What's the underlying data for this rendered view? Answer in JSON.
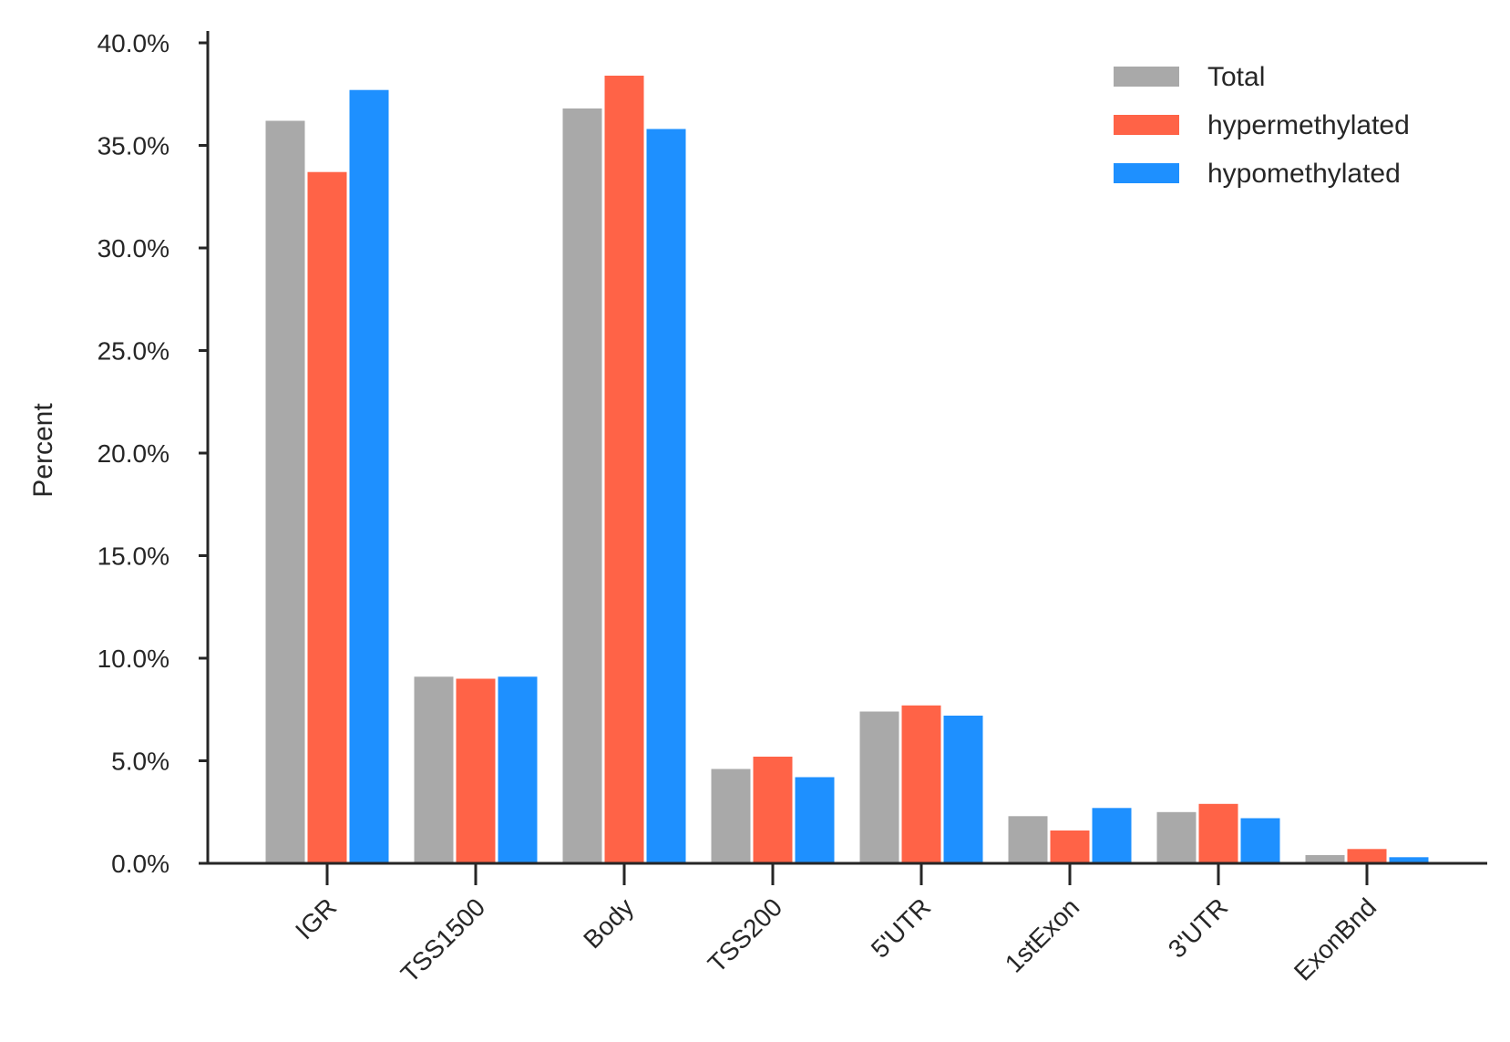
{
  "chart_data": {
    "type": "bar",
    "title": "",
    "xlabel": "",
    "ylabel": "Percent",
    "ylim": [
      0,
      40
    ],
    "y_ticks": [
      0,
      5,
      10,
      15,
      20,
      25,
      30,
      35,
      40
    ],
    "y_tick_format": "percent_1dp",
    "categories": [
      "IGR",
      "TSS1500",
      "Body",
      "TSS200",
      "5'UTR",
      "1stExon",
      "3'UTR",
      "ExonBnd"
    ],
    "series": [
      {
        "name": "Total",
        "color": "#a9a9a9",
        "values": [
          36.2,
          9.1,
          36.8,
          4.6,
          7.4,
          2.3,
          2.5,
          0.4
        ]
      },
      {
        "name": "hypermethylated",
        "color": "#ff6347",
        "values": [
          33.7,
          9.0,
          38.4,
          5.2,
          7.7,
          1.6,
          2.9,
          0.7
        ]
      },
      {
        "name": "hypomethylated",
        "color": "#1e90ff",
        "values": [
          37.7,
          9.1,
          35.8,
          4.2,
          7.2,
          2.7,
          2.2,
          0.3
        ]
      }
    ],
    "legend_position": "top-right",
    "grid": false
  }
}
